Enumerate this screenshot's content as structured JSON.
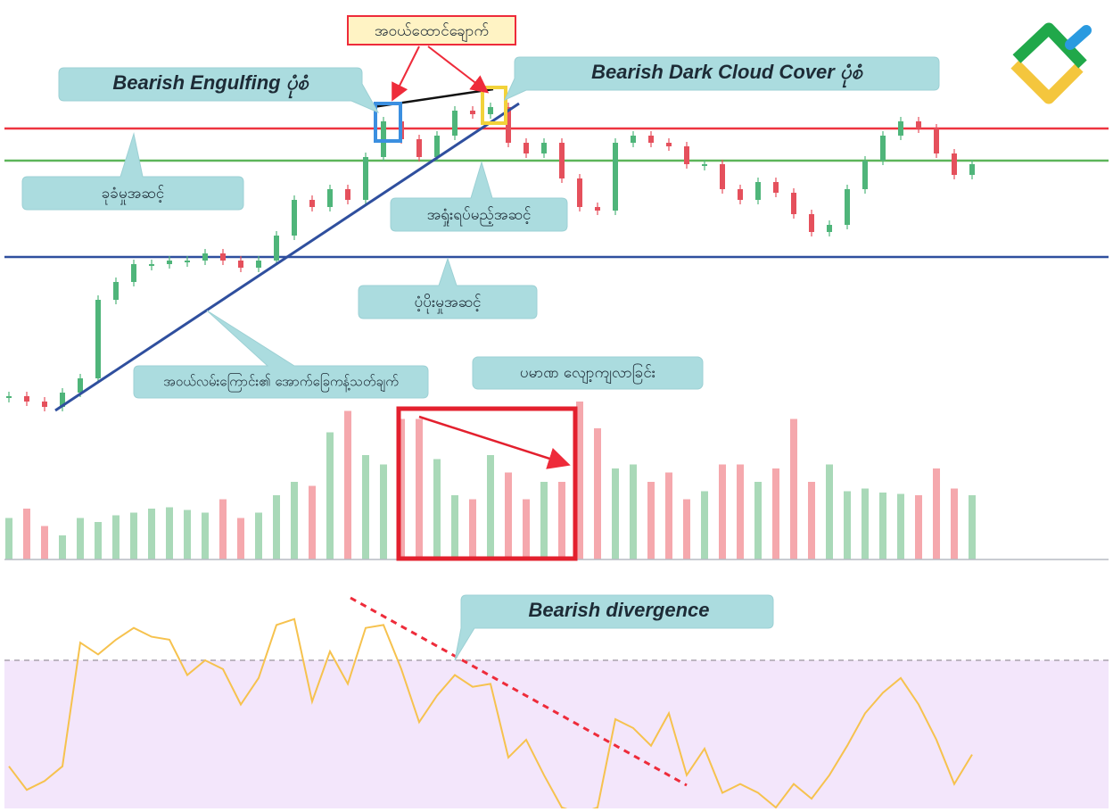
{
  "chart_data": {
    "type": "candlestick",
    "closes": [
      9,
      7.5,
      6,
      10,
      14,
      36,
      41,
      46,
      46,
      47,
      47,
      49,
      47,
      45,
      47,
      54,
      64,
      62,
      67,
      64,
      76,
      86,
      81,
      76,
      82,
      89,
      88,
      90,
      80,
      77,
      80,
      70,
      62,
      61,
      80,
      82,
      80,
      79,
      74,
      74,
      67,
      64,
      69,
      66,
      60,
      55,
      57,
      67,
      75,
      82,
      86,
      84,
      77,
      71,
      74
    ],
    "ylim": [
      0,
      120
    ],
    "up_color": "#4fb57a",
    "down_color": "#e5505c",
    "levels": [
      {
        "value": 84,
        "color": "#ee3440"
      },
      {
        "value": 75,
        "color": "#5db55a"
      },
      {
        "value": 48,
        "color": "#2f4f9e"
      }
    ],
    "volume": {
      "values": [
        31,
        38,
        25,
        18,
        31,
        28,
        33,
        35,
        38,
        39,
        37,
        35,
        45,
        31,
        35,
        48,
        58,
        55,
        95,
        111,
        78,
        71,
        105,
        105,
        75,
        48,
        45,
        78,
        65,
        45,
        58,
        58,
        118,
        98,
        68,
        71,
        58,
        65,
        45,
        51,
        71,
        71,
        58,
        68,
        105,
        58,
        71,
        51,
        53,
        50,
        49,
        48,
        68,
        53,
        48
      ],
      "ylim": [
        0,
        120
      ],
      "up_color": "#a9d9b8",
      "down_color": "#f5a8ad"
    },
    "rsi": {
      "values": [
        34,
        26,
        29,
        34,
        76,
        72,
        77,
        81,
        78,
        77,
        65,
        70,
        67,
        55,
        64,
        82,
        84,
        56,
        73,
        62,
        81,
        82,
        67,
        49,
        58,
        65,
        61,
        62,
        37,
        43,
        31,
        20,
        18,
        20,
        50,
        47,
        41,
        52,
        31,
        40,
        25,
        28,
        25,
        20,
        28,
        23,
        31,
        41,
        52,
        59,
        64,
        55,
        43,
        28,
        38
      ],
      "ylim": [
        20,
        100
      ],
      "color": "#f6c24e",
      "overbought": 70
    },
    "annotations": [
      "အဝယ်ထောင်ချောက်",
      "Bearish Engulfing ပုံစံ",
      "Bearish Dark Cloud Cover ပုံစံ",
      "ခုခံမှုအဆင့်",
      "အရှုံးရပ်မည့်အဆင့်",
      "ပံ့ပိုးမှုအဆင့်",
      "အဝယ်လမ်းကြောင်း၏ အောက်ခြေကန့်သတ်ချက်",
      "ပမာဏ လျော့ကျလာခြင်း",
      "Bearish divergence"
    ]
  }
}
